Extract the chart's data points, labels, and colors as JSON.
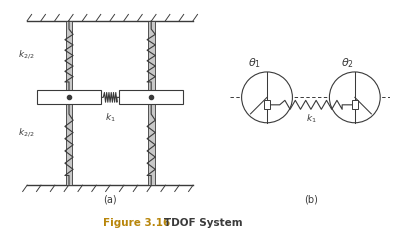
{
  "fig_width": 4.07,
  "fig_height": 2.29,
  "dpi": 100,
  "bg_color": "#ffffff",
  "line_color": "#3a3a3a",
  "figure_label": "Figure 3.16",
  "figure_title": "   TDOF System",
  "label_a": "(a)",
  "label_b": "(b)",
  "k22_label_top": "$k_{2/2}$",
  "k22_label_bot": "$k_{2/2}$",
  "k1_label_a": "$k_1$",
  "k1_label_b": "$k_1$",
  "theta1_label": "$\\theta_1$",
  "theta2_label": "$\\theta_2$",
  "col_facecolor": "#c8c8c8",
  "caption_color": "#b8860b"
}
